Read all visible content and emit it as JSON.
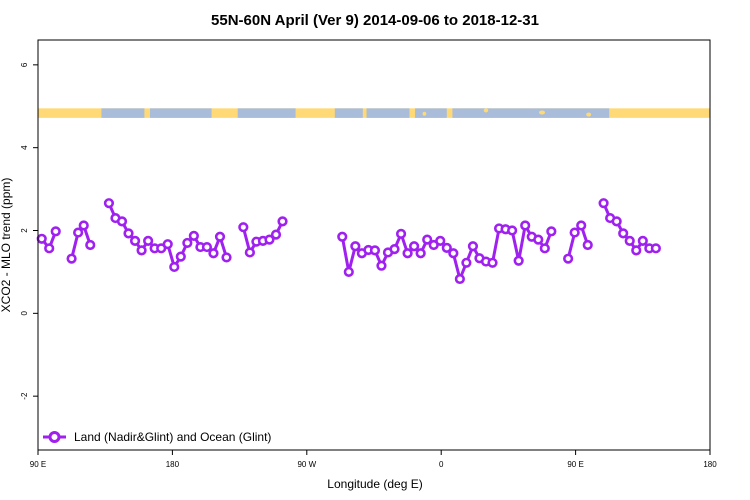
{
  "chart_data": {
    "type": "line",
    "title": "55N-60N April (Ver 9)   2014-09-06 to 2018-12-31",
    "xlabel": "Longitude (deg E)",
    "ylabel": "XCO2 - MLO trend (ppm)",
    "xlim": [
      90,
      450
    ],
    "ylim": [
      -3.3,
      6.6
    ],
    "x_ticks": [
      {
        "value": 90,
        "label": "90 E"
      },
      {
        "value": 162,
        "label": "180"
      },
      {
        "value": 234,
        "label": "90 W"
      },
      {
        "value": 306,
        "label": "0"
      },
      {
        "value": 378,
        "label": "90 E"
      },
      {
        "value": 450,
        "label": "180"
      }
    ],
    "y_ticks": [
      {
        "value": -2,
        "label": "-2"
      },
      {
        "value": 0,
        "label": "0"
      },
      {
        "value": 2,
        "label": "2"
      },
      {
        "value": 4,
        "label": "4"
      },
      {
        "value": 6,
        "label": "6"
      }
    ],
    "land_strip": {
      "y_range": [
        4.72,
        4.95
      ],
      "land_color": "#ffd975",
      "ocean_color": "#a9bcd9"
    },
    "series": [
      {
        "name": "Land (Nadir&Glint) and Ocean (Glint)",
        "color": "#a020f0",
        "segments": [
          [
            [
              92.0,
              1.8
            ],
            [
              96.0,
              1.57
            ],
            [
              99.5,
              1.98
            ]
          ],
          [
            [
              108.0,
              1.32
            ],
            [
              111.5,
              1.95
            ],
            [
              114.5,
              2.12
            ],
            [
              118.0,
              1.65
            ]
          ],
          [
            [
              128.0,
              2.66
            ],
            [
              131.5,
              2.3
            ],
            [
              135.0,
              2.22
            ],
            [
              138.5,
              1.93
            ],
            [
              142.0,
              1.75
            ],
            [
              145.5,
              1.52
            ],
            [
              149.0,
              1.75
            ],
            [
              152.5,
              1.57
            ],
            [
              156.0,
              1.57
            ],
            [
              159.5,
              1.67
            ],
            [
              163.0,
              1.12
            ],
            [
              166.5,
              1.37
            ],
            [
              170.0,
              1.7
            ],
            [
              173.5,
              1.87
            ],
            [
              177.0,
              1.6
            ],
            [
              180.5,
              1.6
            ],
            [
              184.0,
              1.45
            ],
            [
              187.5,
              1.85
            ],
            [
              191.0,
              1.35
            ]
          ],
          [
            [
              200.0,
              2.08
            ],
            [
              203.5,
              1.47
            ],
            [
              207.0,
              1.73
            ],
            [
              210.5,
              1.75
            ],
            [
              214.0,
              1.78
            ],
            [
              217.5,
              1.9
            ],
            [
              221.0,
              2.22
            ]
          ],
          [
            [
              253.0,
              1.85
            ],
            [
              256.5,
              1.0
            ],
            [
              260.0,
              1.62
            ],
            [
              263.5,
              1.45
            ],
            [
              267.0,
              1.53
            ],
            [
              270.5,
              1.52
            ],
            [
              274.0,
              1.15
            ],
            [
              277.5,
              1.47
            ],
            [
              281.0,
              1.55
            ],
            [
              284.5,
              1.92
            ],
            [
              288.0,
              1.45
            ],
            [
              291.5,
              1.62
            ],
            [
              295.0,
              1.45
            ],
            [
              298.5,
              1.78
            ],
            [
              302.0,
              1.65
            ],
            [
              305.5,
              1.75
            ],
            [
              309.0,
              1.58
            ],
            [
              312.5,
              1.45
            ],
            [
              316.0,
              0.83
            ],
            [
              319.5,
              1.22
            ],
            [
              323.0,
              1.62
            ],
            [
              326.5,
              1.33
            ],
            [
              330.0,
              1.25
            ],
            [
              333.5,
              1.22
            ],
            [
              337.0,
              2.05
            ],
            [
              340.5,
              2.03
            ],
            [
              344.0,
              2.0
            ],
            [
              347.5,
              1.27
            ],
            [
              351.0,
              2.12
            ],
            [
              354.5,
              1.85
            ],
            [
              358.0,
              1.78
            ],
            [
              361.5,
              1.57
            ],
            [
              365.0,
              1.98
            ]
          ],
          [
            [
              374.0,
              1.32
            ],
            [
              377.5,
              1.95
            ],
            [
              381.0,
              2.12
            ],
            [
              384.5,
              1.65
            ]
          ],
          [
            [
              393.0,
              2.66
            ],
            [
              396.5,
              2.3
            ],
            [
              400.0,
              2.22
            ],
            [
              403.5,
              1.93
            ],
            [
              407.0,
              1.75
            ],
            [
              410.5,
              1.52
            ],
            [
              414.0,
              1.75
            ],
            [
              417.5,
              1.57
            ],
            [
              421.0,
              1.57
            ]
          ]
        ]
      }
    ]
  }
}
